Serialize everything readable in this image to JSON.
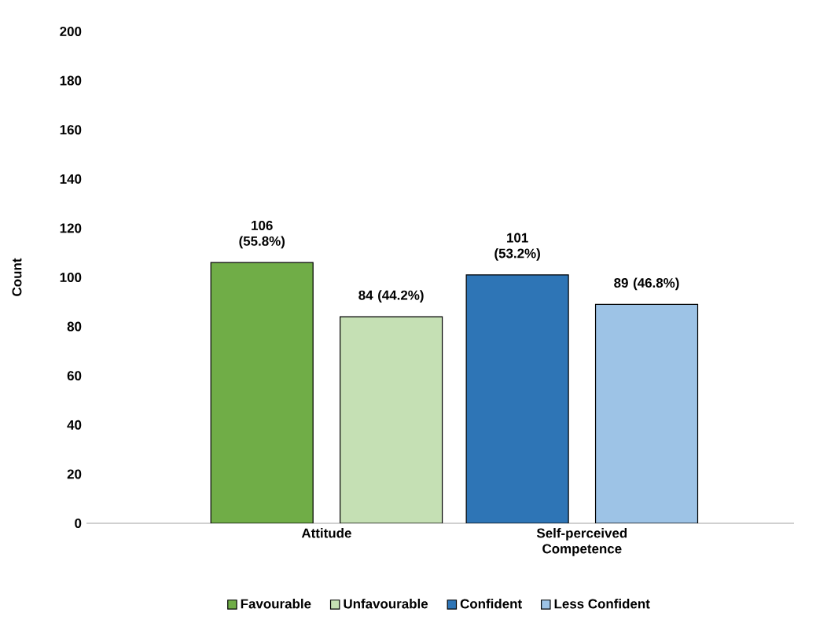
{
  "chart_data": {
    "type": "bar",
    "ylabel": "Count",
    "categories": [
      "Attitude",
      "Self-perceived Competence"
    ],
    "series": [
      {
        "name": "Favourable",
        "color": "#70ad47",
        "values": [
          106,
          null
        ],
        "value_labels": [
          "106 (55.8%)",
          null
        ]
      },
      {
        "name": "Unfavourable",
        "color": "#c5e0b4",
        "values": [
          84,
          null
        ],
        "value_labels": [
          "84 (44.2%)",
          null
        ]
      },
      {
        "name": "Confident",
        "color": "#2e75b6",
        "values": [
          null,
          101
        ],
        "value_labels": [
          null,
          "101 (53.2%)"
        ]
      },
      {
        "name": "Less Confident",
        "color": "#9dc3e6",
        "values": [
          null,
          89
        ],
        "value_labels": [
          null,
          "89 (46.8%)"
        ]
      }
    ],
    "ylim": [
      0,
      200
    ],
    "yticks": [
      0,
      20,
      40,
      60,
      80,
      100,
      120,
      140,
      160,
      180,
      200
    ],
    "legend": "bottom"
  }
}
